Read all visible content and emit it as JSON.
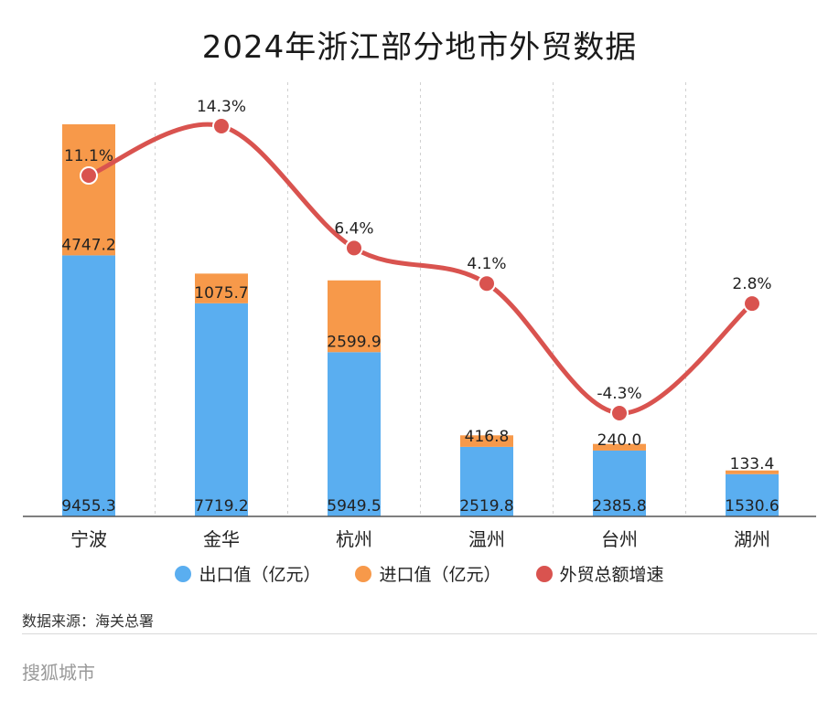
{
  "title": "2024年浙江部分地市外贸数据",
  "source": "数据来源：海关总署",
  "brand": "搜狐城市",
  "colors": {
    "export": "#5AAEF0",
    "import": "#F7994A",
    "growth": "#D9534F",
    "grid": "#d0d0d0",
    "axis": "#555555"
  },
  "chart_data": {
    "type": "bar",
    "stacked": true,
    "categories": [
      "宁波",
      "金华",
      "杭州",
      "温州",
      "台州",
      "湖州"
    ],
    "series": [
      {
        "name": "出口值（亿元）",
        "values": [
          9455.3,
          7719.2,
          5949.5,
          2519.8,
          2385.8,
          1530.6
        ]
      },
      {
        "name": "进口值（亿元）",
        "values": [
          4747.2,
          1075.7,
          2599.9,
          416.8,
          240.0,
          133.4
        ]
      }
    ],
    "line_series": {
      "name": "外贸总额增速",
      "values": [
        11.1,
        14.3,
        6.4,
        4.1,
        -4.3,
        2.8
      ],
      "labels": [
        "11.1%",
        "14.3%",
        "6.4%",
        "4.1%",
        "-4.3%",
        "2.8%"
      ]
    },
    "bar_labels": {
      "export": [
        "9455.3",
        "7719.2",
        "5949.5",
        "2519.8",
        "2385.8",
        "1530.6"
      ],
      "import": [
        "4747.2",
        "1075.7",
        "2599.9",
        "416.8",
        "240.0",
        "133.4"
      ]
    },
    "legend": [
      "出口值（亿元）",
      "进口值（亿元）",
      "外贸总额增速"
    ],
    "legend_position": "bottom",
    "grid": "vertical-dashed"
  }
}
